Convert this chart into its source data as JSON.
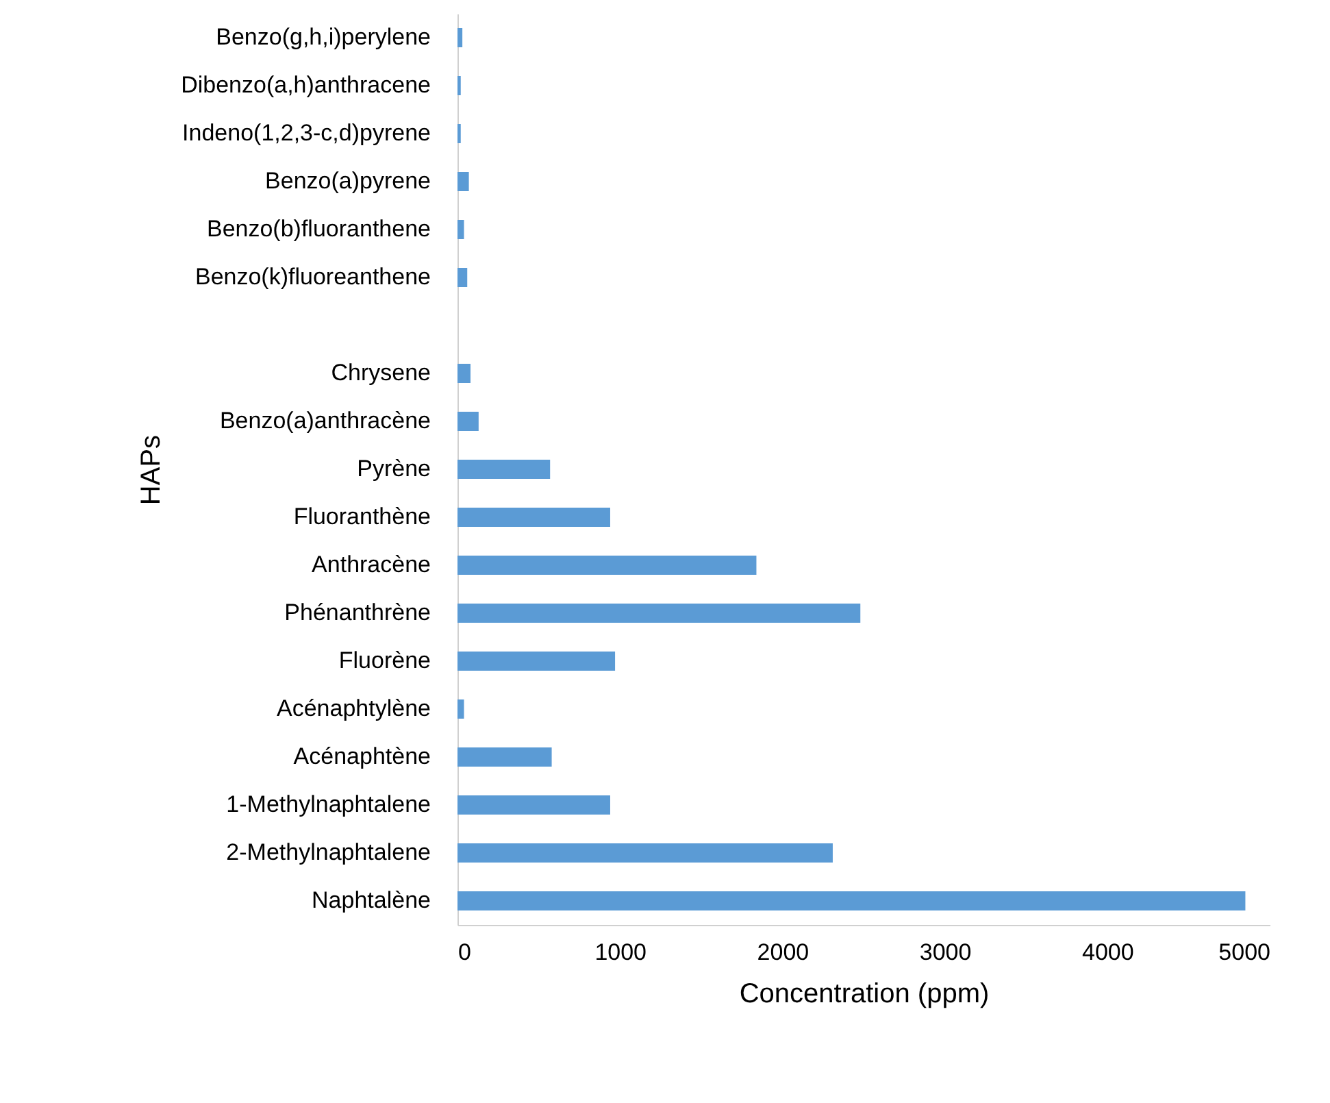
{
  "chart_data": {
    "type": "bar",
    "orientation": "horizontal",
    "xlabel": "Concentration (ppm)",
    "ylabel": "HAPs",
    "categories": [
      "Benzo(g,h,i)perylene",
      "Dibenzo(a,h)anthracene",
      "Indeno(1,2,3-c,d)pyrene",
      "Benzo(a)pyrene",
      "Benzo(b)fluoranthene",
      "Benzo(k)fluoreanthene",
      null,
      "Chrysene",
      "Benzo(a)anthracène",
      "Pyrène",
      "Fluoranthène",
      "Anthracène",
      "Phénanthrène",
      "Fluorène",
      "Acénaphtylène",
      "Acénaphtène",
      "1-Methylnaphtalene",
      "2-Methylnaphtalene",
      "Naphtalène"
    ],
    "values": [
      30,
      20,
      20,
      70,
      40,
      60,
      null,
      80,
      130,
      570,
      940,
      1840,
      2480,
      970,
      40,
      580,
      940,
      2310,
      4850
    ],
    "color": "#5b9bd5",
    "xlim": [
      0,
      5000
    ],
    "xticks": [
      0,
      1000,
      2000,
      3000,
      4000,
      5000
    ],
    "grid": false
  }
}
